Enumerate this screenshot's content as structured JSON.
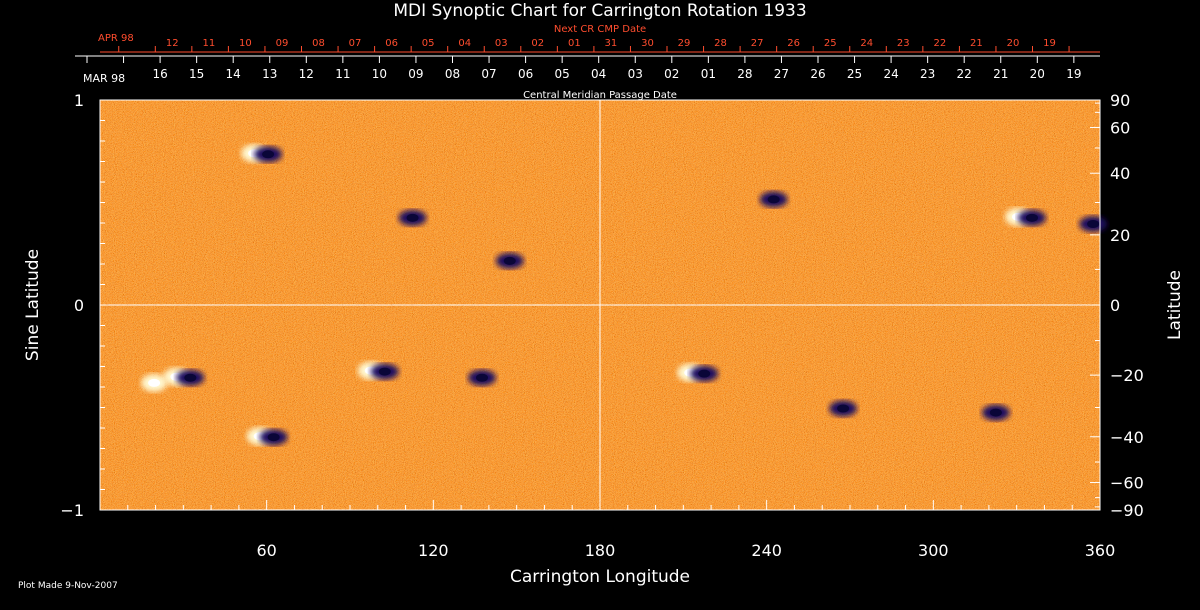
{
  "chart_data": {
    "type": "heatmap",
    "title": "MDI Synoptic Chart for Carrington Rotation 1933",
    "xlabel": "Carrington Longitude",
    "ylabel_left": "Sine Latitude",
    "ylabel_right": "Latitude",
    "top_axis_label": "Central Meridian Passage Date",
    "next_axis_label": "Next CR CMP Date",
    "month_label_top": "MAR 98",
    "month_label_next": "APR 98",
    "xlim": [
      0,
      360
    ],
    "ylim": [
      -1,
      1
    ],
    "x_ticks": [
      "60",
      "120",
      "180",
      "240",
      "300",
      "360"
    ],
    "x_tick_values": [
      60,
      120,
      180,
      240,
      300,
      360
    ],
    "y_left_ticks": [
      "1",
      "0",
      "−1"
    ],
    "y_left_tick_values": [
      1,
      0,
      -1
    ],
    "y_right_ticks": [
      "90",
      "60",
      "40",
      "20",
      "0",
      "−20",
      "−40",
      "−60",
      "−90"
    ],
    "y_right_tick_values": [
      90,
      60,
      40,
      20,
      0,
      -20,
      -40,
      -60,
      -90
    ],
    "cmp_dates": [
      "16",
      "15",
      "14",
      "13",
      "12",
      "11",
      "10",
      "09",
      "08",
      "07",
      "06",
      "05",
      "04",
      "03",
      "02",
      "01",
      "28",
      "27",
      "26",
      "25",
      "24",
      "23",
      "22",
      "21",
      "20",
      "19"
    ],
    "next_cr_dates": [
      "12",
      "11",
      "10",
      "09",
      "08",
      "07",
      "06",
      "05",
      "04",
      "03",
      "02",
      "01",
      "31",
      "30",
      "29",
      "28",
      "27",
      "26",
      "25",
      "24",
      "23",
      "22",
      "21",
      "20",
      "19"
    ],
    "active_regions": [
      {
        "lon": 58,
        "sinlat": 0.74,
        "polarity": "mixed"
      },
      {
        "lon": 110,
        "sinlat": 0.43,
        "polarity": "negative"
      },
      {
        "lon": 145,
        "sinlat": 0.22,
        "polarity": "negative"
      },
      {
        "lon": 30,
        "sinlat": -0.35,
        "polarity": "mixed"
      },
      {
        "lon": 22,
        "sinlat": -0.38,
        "polarity": "positive"
      },
      {
        "lon": 60,
        "sinlat": -0.64,
        "polarity": "mixed"
      },
      {
        "lon": 100,
        "sinlat": -0.32,
        "polarity": "mixed"
      },
      {
        "lon": 135,
        "sinlat": -0.35,
        "polarity": "negative"
      },
      {
        "lon": 215,
        "sinlat": -0.33,
        "polarity": "mixed"
      },
      {
        "lon": 240,
        "sinlat": 0.52,
        "polarity": "negative"
      },
      {
        "lon": 265,
        "sinlat": -0.5,
        "polarity": "negative"
      },
      {
        "lon": 333,
        "sinlat": 0.43,
        "polarity": "mixed"
      },
      {
        "lon": 355,
        "sinlat": 0.4,
        "polarity": "negative"
      },
      {
        "lon": 320,
        "sinlat": -0.52,
        "polarity": "negative"
      }
    ]
  },
  "footer": {
    "plot_made": "Plot Made  9-Nov-2007"
  }
}
